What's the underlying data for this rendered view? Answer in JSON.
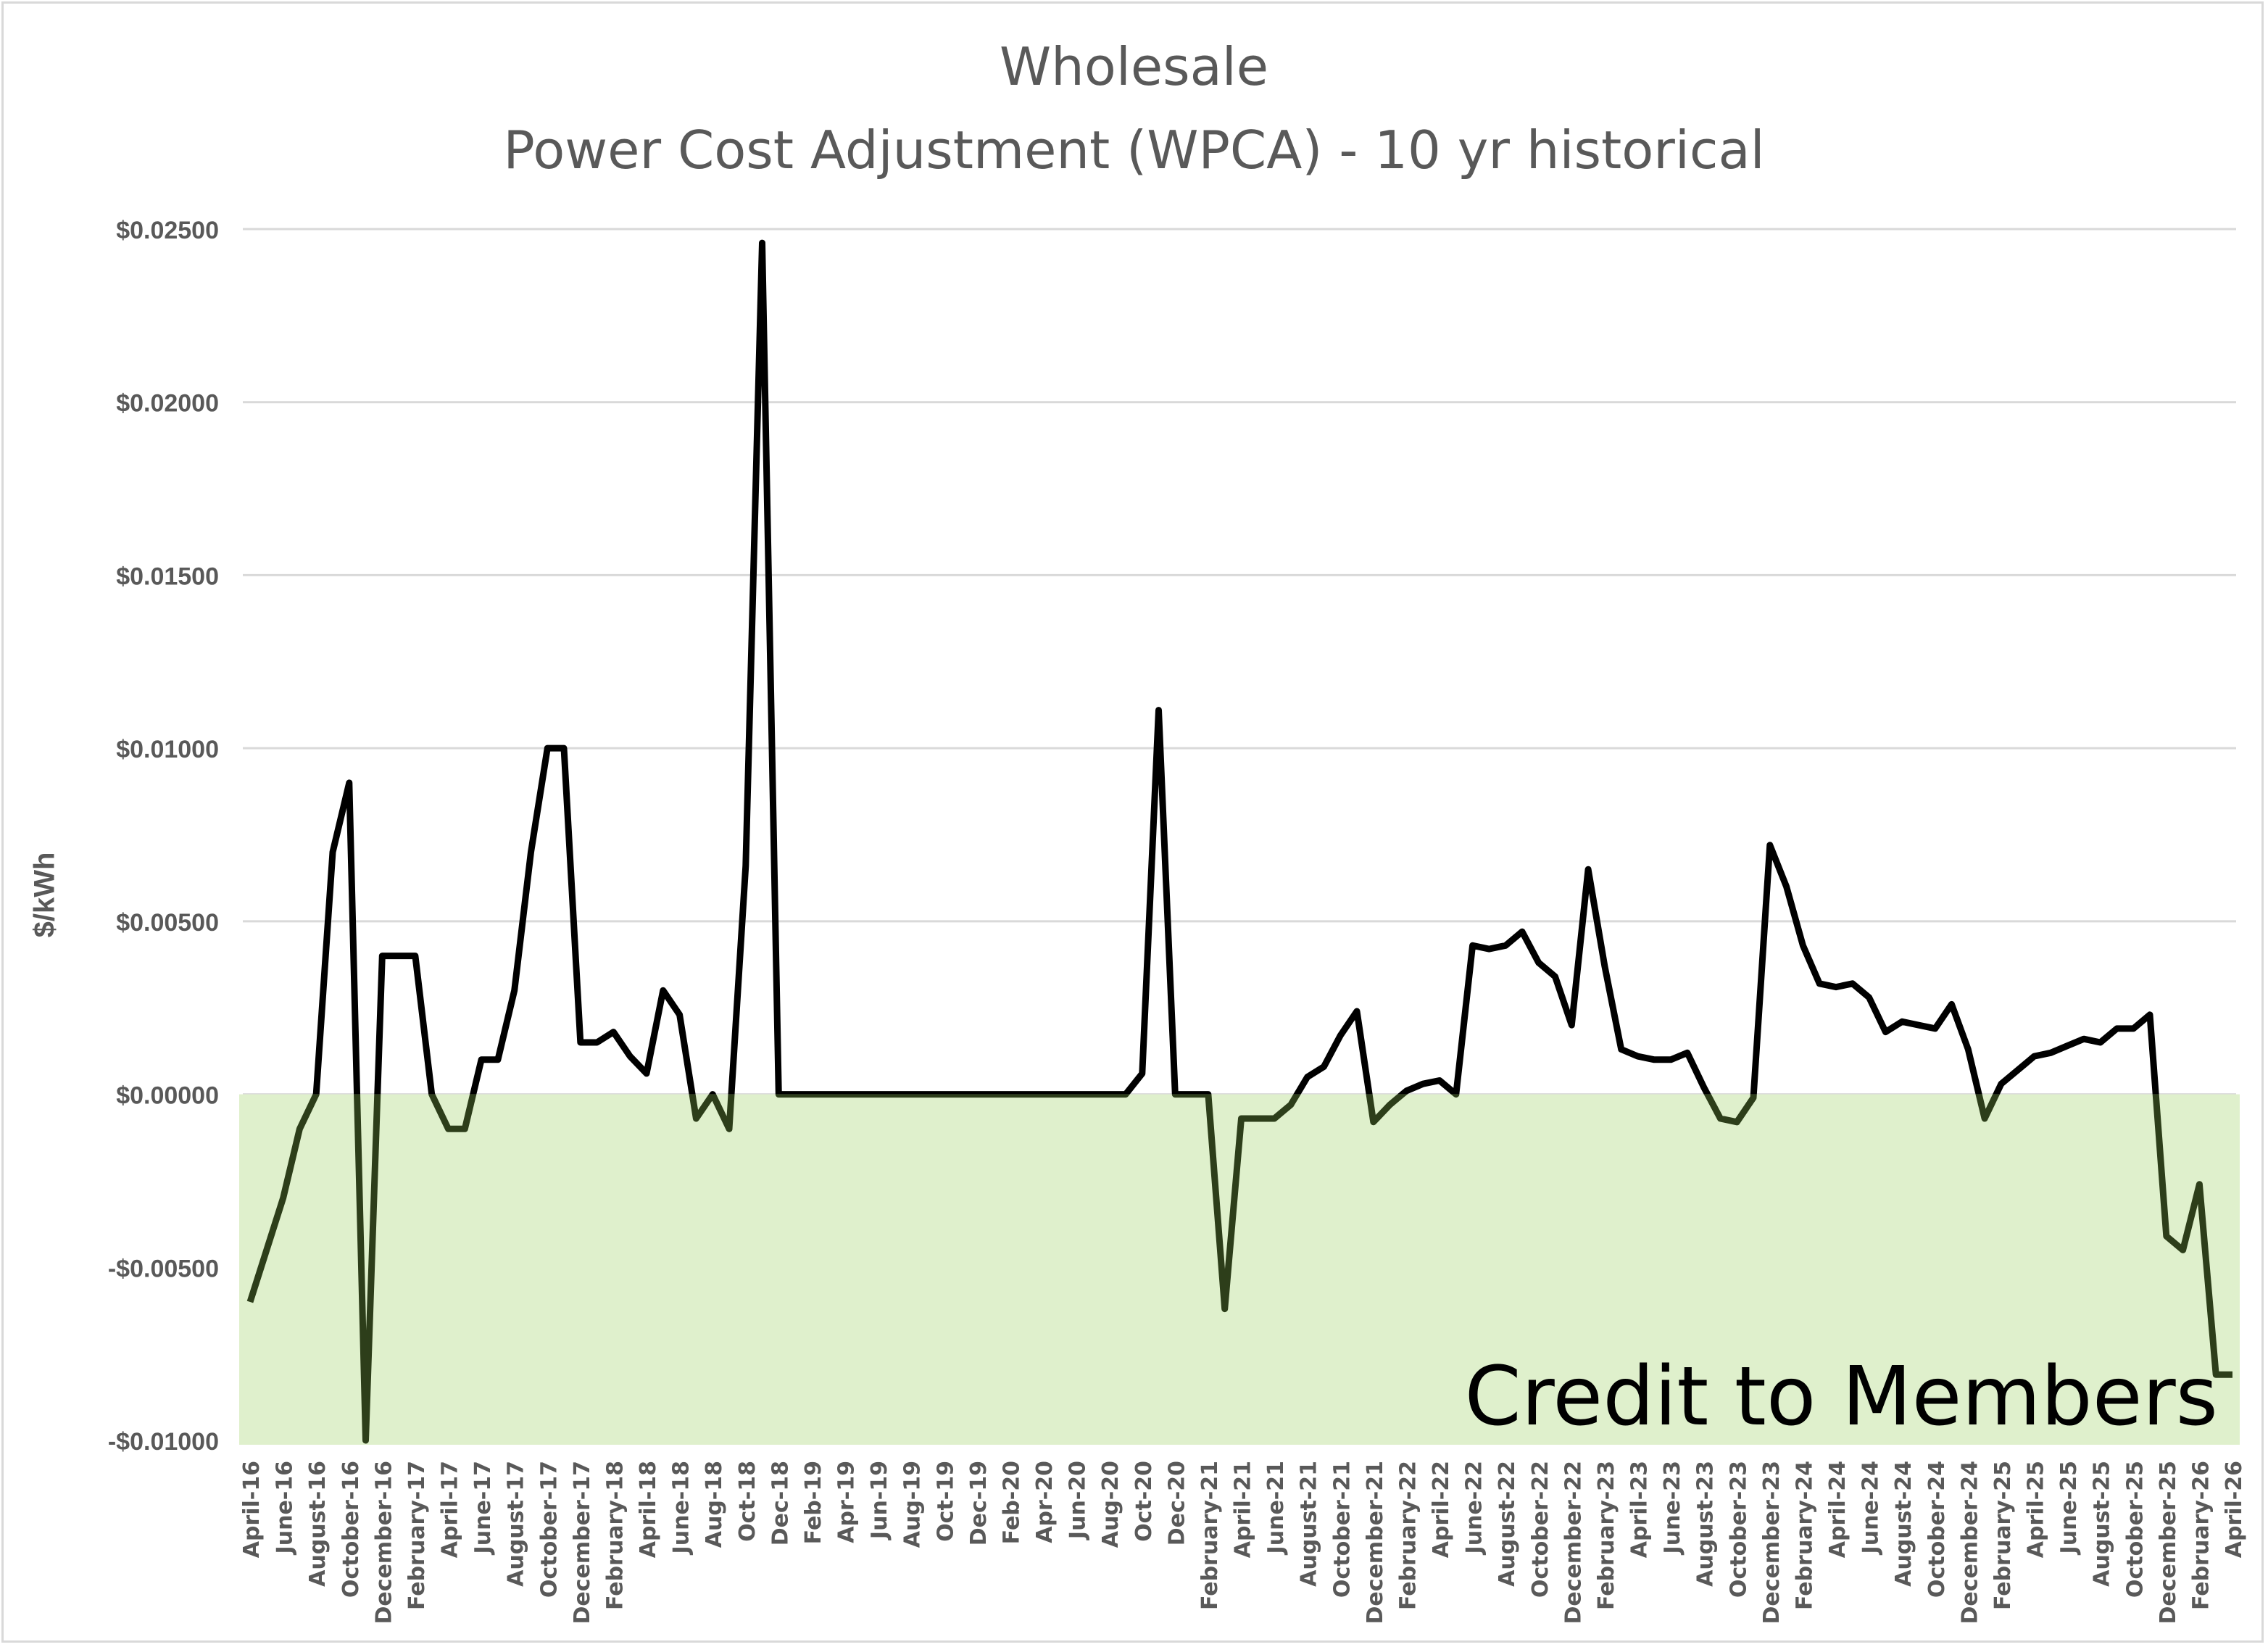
{
  "chart": {
    "title_line1": "Wholesale",
    "title_line2": "Power Cost Adjustment (WPCA) - 10 yr historical",
    "ylabel": "$/kWh",
    "annotation": "Credit to Members",
    "colors": {
      "line": "#000000",
      "credit_region": "#dff0cc",
      "line_in_region": "#2d3e1a",
      "grid": "#d9d9d9",
      "text": "#595959"
    }
  },
  "chart_data": {
    "type": "line",
    "title": "Wholesale Power Cost Adjustment (WPCA) - 10 yr historical",
    "xlabel": "",
    "ylabel": "$/kWh",
    "ylim": [
      -0.01,
      0.025
    ],
    "yticks": [
      "$0.02500",
      "$0.02000",
      "$0.01500",
      "$0.01000",
      "$0.00500",
      "$0.00000",
      "-$0.00500",
      "-$0.01000"
    ],
    "ytick_values": [
      0.025,
      0.02,
      0.015,
      0.01,
      0.005,
      0,
      -0.005,
      -0.01
    ],
    "grid": true,
    "legend": null,
    "shaded_region": {
      "from": -0.01,
      "to": 0,
      "label": "Credit to Members"
    },
    "xtick_labels": [
      "April-16",
      "June-16",
      "August-16",
      "October-16",
      "December-16",
      "February-17",
      "April-17",
      "June-17",
      "August-17",
      "October-17",
      "December-17",
      "February-18",
      "April-18",
      "June-18",
      "Aug-18",
      "Oct-18",
      "Dec-18",
      "Feb-19",
      "Apr-19",
      "Jun-19",
      "Aug-19",
      "Oct-19",
      "Dec-19",
      "Feb-20",
      "Apr-20",
      "Jun-20",
      "Aug-20",
      "Oct-20",
      "Dec-20",
      "February-21",
      "April-21",
      "June-21",
      "August-21",
      "October-21",
      "December-21",
      "February-22",
      "April-22",
      "June-22",
      "August-22",
      "October-22",
      "December-22",
      "February-23",
      "April-23",
      "June-23",
      "August-23",
      "October-23",
      "December-23",
      "February-24",
      "April-24",
      "June-24",
      "August-24",
      "October-24",
      "December-24",
      "February-25",
      "April-25",
      "June-25",
      "August-25",
      "October-25",
      "December-25",
      "February-26",
      "April-26"
    ],
    "x_start": "April-16",
    "x_end": "April-26",
    "x_step": "monthly",
    "series": [
      {
        "name": "WPCA",
        "values": [
          -0.006,
          -0.0045,
          -0.003,
          -0.001,
          0.0,
          0.007,
          0.009,
          -0.01,
          0.004,
          0.004,
          0.004,
          0.0,
          -0.001,
          -0.001,
          0.001,
          0.001,
          0.003,
          0.007,
          0.01,
          0.01,
          0.0015,
          0.0015,
          0.0018,
          0.0011,
          0.0006,
          0.003,
          0.0023,
          -0.0007,
          0.0,
          -0.001,
          0.0066,
          0.0246,
          0.0,
          0.0,
          0.0,
          0.0,
          0.0,
          0.0,
          0.0,
          0.0,
          0.0,
          0.0,
          0.0,
          0.0,
          0.0,
          0.0,
          0.0,
          0.0,
          0.0,
          0.0,
          0.0,
          0.0,
          0.0,
          0.0,
          0.0006,
          0.0111,
          0.0,
          0.0,
          0.0,
          -0.0062,
          -0.0007,
          -0.0007,
          -0.0007,
          -0.0003,
          0.0005,
          0.0008,
          0.0017,
          0.0024,
          -0.0008,
          -0.0003,
          0.0001,
          0.0003,
          0.0004,
          0.0,
          0.0043,
          0.0042,
          0.0043,
          0.0047,
          0.0038,
          0.0034,
          0.002,
          0.0065,
          0.0037,
          0.0013,
          0.0011,
          0.001,
          0.001,
          0.0012,
          0.0002,
          -0.0007,
          -0.0008,
          -0.0001,
          0.0072,
          0.006,
          0.0043,
          0.0032,
          0.0031,
          0.0032,
          0.0028,
          0.0018,
          0.0021,
          0.002,
          0.0019,
          0.0026,
          0.0013,
          -0.0007,
          0.0003,
          0.0007,
          0.0011,
          0.0012,
          0.0014,
          0.0016,
          0.0015,
          0.0019,
          0.0019,
          0.0023,
          -0.0041,
          -0.0045,
          -0.0026,
          -0.0081,
          -0.0081
        ]
      }
    ]
  }
}
